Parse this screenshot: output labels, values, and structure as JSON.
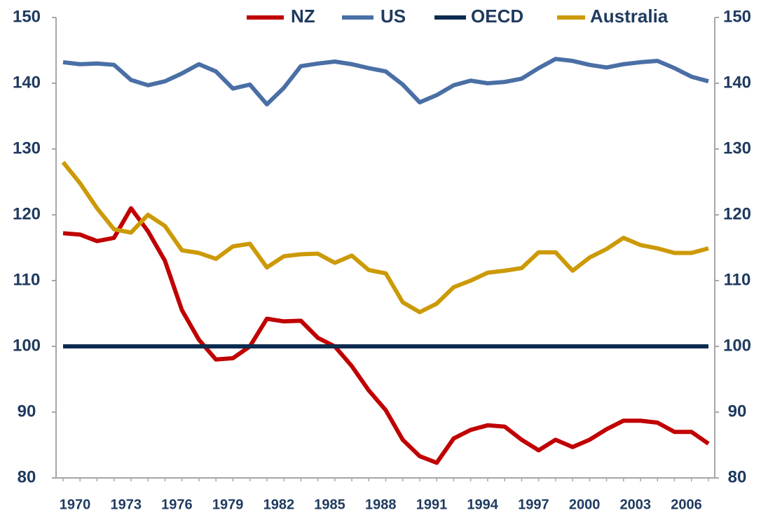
{
  "chart_data": {
    "type": "line",
    "categories": [
      "1970",
      null,
      null,
      "1973",
      null,
      null,
      "1976",
      null,
      null,
      "1979",
      null,
      null,
      "1982",
      null,
      null,
      "1985",
      null,
      null,
      "1988",
      null,
      null,
      "1991",
      null,
      null,
      "1994",
      null,
      null,
      "1997",
      null,
      null,
      "2000",
      null,
      null,
      "2003",
      null,
      null,
      "2006",
      null,
      null
    ],
    "series": [
      {
        "name": "NZ",
        "color": "#c00000",
        "values": [
          117.2,
          117,
          116,
          116.5,
          121,
          117.5,
          113,
          105.5,
          101,
          98,
          98.2,
          100,
          104.2,
          103.8,
          103.9,
          101.3,
          100,
          97,
          93.3,
          90.3,
          85.8,
          83.3,
          82.3,
          86,
          87.3,
          88,
          87.8,
          85.8,
          84.2,
          85.8,
          84.7,
          85.8,
          87.4,
          88.7,
          88.7,
          88.4,
          87,
          87,
          85.2
        ]
      },
      {
        "name": "US",
        "color": "#4a6fa5",
        "values": [
          143.2,
          142.9,
          143,
          142.8,
          140.5,
          139.7,
          140.3,
          141.5,
          142.9,
          141.8,
          139.2,
          139.8,
          136.8,
          139.3,
          142.6,
          143,
          143.3,
          142.9,
          142.3,
          141.8,
          139.8,
          137.1,
          138.2,
          139.7,
          140.4,
          140,
          140.2,
          140.7,
          142.3,
          143.7,
          143.4,
          142.8,
          142.4,
          142.9,
          143.2,
          143.4,
          142.3,
          141,
          140.3
        ]
      },
      {
        "name": "OECD",
        "color": "#0d2b4e",
        "values": [
          100,
          100,
          100,
          100,
          100,
          100,
          100,
          100,
          100,
          100,
          100,
          100,
          100,
          100,
          100,
          100,
          100,
          100,
          100,
          100,
          100,
          100,
          100,
          100,
          100,
          100,
          100,
          100,
          100,
          100,
          100,
          100,
          100,
          100,
          100,
          100,
          100,
          100,
          100
        ]
      },
      {
        "name": "Australia",
        "color": "#cc9a06",
        "values": [
          128,
          124.8,
          121,
          117.8,
          117.3,
          120,
          118.3,
          114.6,
          114.2,
          113.3,
          115.2,
          115.6,
          112,
          113.7,
          114,
          114.1,
          112.7,
          113.8,
          111.6,
          111.1,
          106.7,
          105.2,
          106.5,
          109,
          110,
          111.2,
          111.5,
          111.9,
          114.3,
          114.3,
          111.5,
          113.5,
          114.8,
          116.5,
          115.4,
          114.9,
          114.2,
          114.2,
          114.9
        ]
      }
    ],
    "ylim": [
      80,
      150
    ],
    "yticks": [
      80,
      90,
      100,
      110,
      120,
      130,
      140,
      150
    ],
    "grid": false,
    "legend": "top"
  }
}
